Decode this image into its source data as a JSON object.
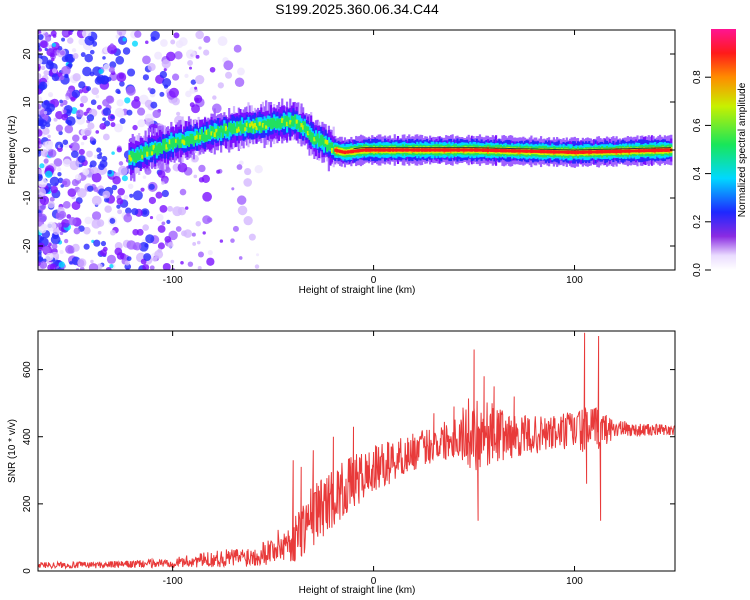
{
  "title": "S199.2025.360.06.34.C44",
  "chart_data": [
    {
      "type": "heatmap",
      "name": "spectrogram",
      "title": "S199.2025.360.06.34.C44",
      "xlabel": "Height of straight line (km)",
      "ylabel": "Frequency (Hz)",
      "xlim": [
        -167,
        150
      ],
      "ylim": [
        -25,
        25
      ],
      "xticks": [
        -100,
        0,
        100
      ],
      "yticks": [
        -20,
        -10,
        0,
        10,
        20
      ],
      "tone_ridge": [
        {
          "x": -120,
          "y": -1.5
        },
        {
          "x": -110,
          "y": 0
        },
        {
          "x": -100,
          "y": 1.5
        },
        {
          "x": -90,
          "y": 2.5
        },
        {
          "x": -80,
          "y": 3.5
        },
        {
          "x": -70,
          "y": 4.5
        },
        {
          "x": -60,
          "y": 5
        },
        {
          "x": -50,
          "y": 5.5
        },
        {
          "x": -40,
          "y": 6
        },
        {
          "x": -35,
          "y": 4.5
        },
        {
          "x": -30,
          "y": 2.5
        },
        {
          "x": -25,
          "y": 1.5
        },
        {
          "x": -20,
          "y": 0
        },
        {
          "x": -15,
          "y": -0.5
        },
        {
          "x": -5,
          "y": 0
        },
        {
          "x": 0,
          "y": 0
        },
        {
          "x": 50,
          "y": 0
        },
        {
          "x": 100,
          "y": -0.5
        },
        {
          "x": 148,
          "y": 0
        }
      ],
      "colorbar": {
        "label": "Normalized spectral amplitude",
        "range": [
          0,
          1
        ],
        "ticks": [
          "0.0",
          "0.2",
          "0.4",
          "0.6",
          "0.8"
        ]
      }
    },
    {
      "type": "line",
      "name": "snr",
      "xlabel": "Height of straight line (km)",
      "ylabel": "SNR (10 * v/v)",
      "xlim": [
        -167,
        150
      ],
      "ylim": [
        0,
        715
      ],
      "xticks": [
        -100,
        0,
        100
      ],
      "yticks": [
        0,
        200,
        400,
        600
      ],
      "color": "#e83a3a",
      "envelope": {
        "x": [
          -167,
          -140,
          -120,
          -100,
          -90,
          -80,
          -60,
          -50,
          -40,
          -35,
          -30,
          -20,
          -10,
          0,
          10,
          20,
          30,
          40,
          50,
          60,
          70,
          80,
          90,
          100,
          110,
          120,
          130,
          150
        ],
        "mean": [
          18,
          18,
          20,
          25,
          30,
          35,
          45,
          65,
          95,
          130,
          170,
          220,
          265,
          300,
          330,
          355,
          380,
          400,
          415,
          410,
          400,
          405,
          410,
          420,
          420,
          425,
          420,
          420
        ],
        "spread": [
          12,
          12,
          14,
          18,
          25,
          30,
          40,
          55,
          90,
          110,
          120,
          110,
          100,
          90,
          80,
          70,
          70,
          80,
          150,
          110,
          80,
          70,
          70,
          80,
          90,
          35,
          25,
          20
        ]
      },
      "spikes": [
        {
          "x": -40,
          "y": 330
        },
        {
          "x": -36,
          "y": 310
        },
        {
          "x": -30,
          "y": 360
        },
        {
          "x": -20,
          "y": 400
        },
        {
          "x": -10,
          "y": 430
        },
        {
          "x": 30,
          "y": 470
        },
        {
          "x": 40,
          "y": 490
        },
        {
          "x": 50,
          "y": 660
        },
        {
          "x": 52,
          "y": 150
        },
        {
          "x": 55,
          "y": 580
        },
        {
          "x": 60,
          "y": 550
        },
        {
          "x": 70,
          "y": 520
        },
        {
          "x": 105,
          "y": 710
        },
        {
          "x": 106,
          "y": 260
        },
        {
          "x": 112,
          "y": 700
        },
        {
          "x": 113,
          "y": 150
        }
      ]
    }
  ]
}
